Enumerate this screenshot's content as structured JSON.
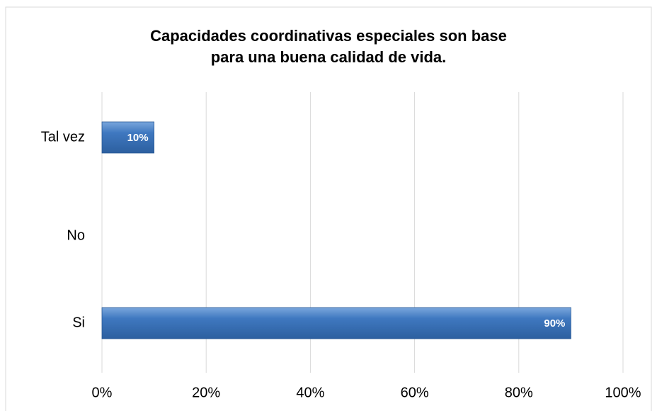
{
  "chart_data": {
    "type": "bar",
    "orientation": "horizontal",
    "title": "Capacidades coordinativas especiales son base para una buena calidad de vida.",
    "categories": [
      "Tal vez",
      "No",
      "Si"
    ],
    "values": [
      10,
      0,
      90
    ],
    "value_labels": [
      "10%",
      null,
      "90%"
    ],
    "color": "#3f78c0",
    "xlim": [
      0,
      100
    ],
    "xticks": [
      {
        "value": 0,
        "label": "0%"
      },
      {
        "value": 20,
        "label": "20%"
      },
      {
        "value": 40,
        "label": "40%"
      },
      {
        "value": 60,
        "label": "60%"
      },
      {
        "value": 80,
        "label": "80%"
      },
      {
        "value": 100,
        "label": "100%"
      }
    ],
    "grid": true
  }
}
